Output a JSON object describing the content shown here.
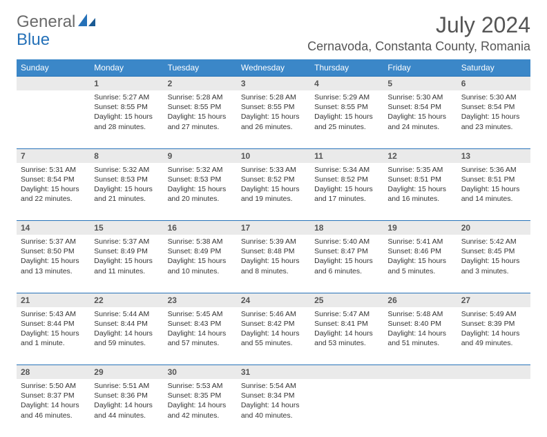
{
  "logo": {
    "part1": "General",
    "part2": "Blue"
  },
  "title": "July 2024",
  "location": "Cernavoda, Constanta County, Romania",
  "colors": {
    "header_bg": "#3b87c8",
    "header_text": "#ffffff",
    "daynum_bg": "#eaeaea",
    "daynum_border": "#2571b8",
    "text": "#333333",
    "logo_gray": "#6a6a6a",
    "logo_blue": "#2571b8"
  },
  "day_headers": [
    "Sunday",
    "Monday",
    "Tuesday",
    "Wednesday",
    "Thursday",
    "Friday",
    "Saturday"
  ],
  "weeks": [
    [
      {
        "n": "",
        "sunrise": "",
        "sunset": "",
        "daylight": ""
      },
      {
        "n": "1",
        "sunrise": "Sunrise: 5:27 AM",
        "sunset": "Sunset: 8:55 PM",
        "daylight": "Daylight: 15 hours and 28 minutes."
      },
      {
        "n": "2",
        "sunrise": "Sunrise: 5:28 AM",
        "sunset": "Sunset: 8:55 PM",
        "daylight": "Daylight: 15 hours and 27 minutes."
      },
      {
        "n": "3",
        "sunrise": "Sunrise: 5:28 AM",
        "sunset": "Sunset: 8:55 PM",
        "daylight": "Daylight: 15 hours and 26 minutes."
      },
      {
        "n": "4",
        "sunrise": "Sunrise: 5:29 AM",
        "sunset": "Sunset: 8:55 PM",
        "daylight": "Daylight: 15 hours and 25 minutes."
      },
      {
        "n": "5",
        "sunrise": "Sunrise: 5:30 AM",
        "sunset": "Sunset: 8:54 PM",
        "daylight": "Daylight: 15 hours and 24 minutes."
      },
      {
        "n": "6",
        "sunrise": "Sunrise: 5:30 AM",
        "sunset": "Sunset: 8:54 PM",
        "daylight": "Daylight: 15 hours and 23 minutes."
      }
    ],
    [
      {
        "n": "7",
        "sunrise": "Sunrise: 5:31 AM",
        "sunset": "Sunset: 8:54 PM",
        "daylight": "Daylight: 15 hours and 22 minutes."
      },
      {
        "n": "8",
        "sunrise": "Sunrise: 5:32 AM",
        "sunset": "Sunset: 8:53 PM",
        "daylight": "Daylight: 15 hours and 21 minutes."
      },
      {
        "n": "9",
        "sunrise": "Sunrise: 5:32 AM",
        "sunset": "Sunset: 8:53 PM",
        "daylight": "Daylight: 15 hours and 20 minutes."
      },
      {
        "n": "10",
        "sunrise": "Sunrise: 5:33 AM",
        "sunset": "Sunset: 8:52 PM",
        "daylight": "Daylight: 15 hours and 19 minutes."
      },
      {
        "n": "11",
        "sunrise": "Sunrise: 5:34 AM",
        "sunset": "Sunset: 8:52 PM",
        "daylight": "Daylight: 15 hours and 17 minutes."
      },
      {
        "n": "12",
        "sunrise": "Sunrise: 5:35 AM",
        "sunset": "Sunset: 8:51 PM",
        "daylight": "Daylight: 15 hours and 16 minutes."
      },
      {
        "n": "13",
        "sunrise": "Sunrise: 5:36 AM",
        "sunset": "Sunset: 8:51 PM",
        "daylight": "Daylight: 15 hours and 14 minutes."
      }
    ],
    [
      {
        "n": "14",
        "sunrise": "Sunrise: 5:37 AM",
        "sunset": "Sunset: 8:50 PM",
        "daylight": "Daylight: 15 hours and 13 minutes."
      },
      {
        "n": "15",
        "sunrise": "Sunrise: 5:37 AM",
        "sunset": "Sunset: 8:49 PM",
        "daylight": "Daylight: 15 hours and 11 minutes."
      },
      {
        "n": "16",
        "sunrise": "Sunrise: 5:38 AM",
        "sunset": "Sunset: 8:49 PM",
        "daylight": "Daylight: 15 hours and 10 minutes."
      },
      {
        "n": "17",
        "sunrise": "Sunrise: 5:39 AM",
        "sunset": "Sunset: 8:48 PM",
        "daylight": "Daylight: 15 hours and 8 minutes."
      },
      {
        "n": "18",
        "sunrise": "Sunrise: 5:40 AM",
        "sunset": "Sunset: 8:47 PM",
        "daylight": "Daylight: 15 hours and 6 minutes."
      },
      {
        "n": "19",
        "sunrise": "Sunrise: 5:41 AM",
        "sunset": "Sunset: 8:46 PM",
        "daylight": "Daylight: 15 hours and 5 minutes."
      },
      {
        "n": "20",
        "sunrise": "Sunrise: 5:42 AM",
        "sunset": "Sunset: 8:45 PM",
        "daylight": "Daylight: 15 hours and 3 minutes."
      }
    ],
    [
      {
        "n": "21",
        "sunrise": "Sunrise: 5:43 AM",
        "sunset": "Sunset: 8:44 PM",
        "daylight": "Daylight: 15 hours and 1 minute."
      },
      {
        "n": "22",
        "sunrise": "Sunrise: 5:44 AM",
        "sunset": "Sunset: 8:44 PM",
        "daylight": "Daylight: 14 hours and 59 minutes."
      },
      {
        "n": "23",
        "sunrise": "Sunrise: 5:45 AM",
        "sunset": "Sunset: 8:43 PM",
        "daylight": "Daylight: 14 hours and 57 minutes."
      },
      {
        "n": "24",
        "sunrise": "Sunrise: 5:46 AM",
        "sunset": "Sunset: 8:42 PM",
        "daylight": "Daylight: 14 hours and 55 minutes."
      },
      {
        "n": "25",
        "sunrise": "Sunrise: 5:47 AM",
        "sunset": "Sunset: 8:41 PM",
        "daylight": "Daylight: 14 hours and 53 minutes."
      },
      {
        "n": "26",
        "sunrise": "Sunrise: 5:48 AM",
        "sunset": "Sunset: 8:40 PM",
        "daylight": "Daylight: 14 hours and 51 minutes."
      },
      {
        "n": "27",
        "sunrise": "Sunrise: 5:49 AM",
        "sunset": "Sunset: 8:39 PM",
        "daylight": "Daylight: 14 hours and 49 minutes."
      }
    ],
    [
      {
        "n": "28",
        "sunrise": "Sunrise: 5:50 AM",
        "sunset": "Sunset: 8:37 PM",
        "daylight": "Daylight: 14 hours and 46 minutes."
      },
      {
        "n": "29",
        "sunrise": "Sunrise: 5:51 AM",
        "sunset": "Sunset: 8:36 PM",
        "daylight": "Daylight: 14 hours and 44 minutes."
      },
      {
        "n": "30",
        "sunrise": "Sunrise: 5:53 AM",
        "sunset": "Sunset: 8:35 PM",
        "daylight": "Daylight: 14 hours and 42 minutes."
      },
      {
        "n": "31",
        "sunrise": "Sunrise: 5:54 AM",
        "sunset": "Sunset: 8:34 PM",
        "daylight": "Daylight: 14 hours and 40 minutes."
      },
      {
        "n": "",
        "sunrise": "",
        "sunset": "",
        "daylight": ""
      },
      {
        "n": "",
        "sunrise": "",
        "sunset": "",
        "daylight": ""
      },
      {
        "n": "",
        "sunrise": "",
        "sunset": "",
        "daylight": ""
      }
    ]
  ]
}
